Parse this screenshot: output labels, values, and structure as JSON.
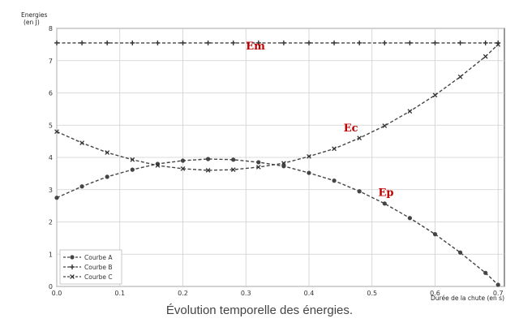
{
  "caption": "Évolution temporelle des énergies.",
  "chart_data": {
    "type": "line",
    "ylabel_line1": "Energies",
    "ylabel_line2": "(en J)",
    "xlabel": "Durée de la chute (en s)",
    "xlim": [
      0,
      0.71
    ],
    "ylim": [
      0,
      8
    ],
    "x_ticks": [
      "0.0",
      "0.1",
      "0.2",
      "0.3",
      "0.4",
      "0.5",
      "0.6",
      "0.7"
    ],
    "y_ticks": [
      "0",
      "1",
      "2",
      "3",
      "4",
      "5",
      "6",
      "7",
      "8"
    ],
    "grid": true,
    "legend_position": "bottom-left",
    "x": [
      0,
      0.04,
      0.08,
      0.12,
      0.16,
      0.2,
      0.24,
      0.28,
      0.32,
      0.36,
      0.4,
      0.44,
      0.48,
      0.52,
      0.56,
      0.6,
      0.64,
      0.68,
      0.7
    ],
    "series": [
      {
        "name": "Courbe A",
        "marker": "circle",
        "values": [
          2.75,
          3.1,
          3.4,
          3.62,
          3.8,
          3.9,
          3.95,
          3.93,
          3.85,
          3.73,
          3.52,
          3.28,
          2.95,
          2.57,
          2.12,
          1.62,
          1.05,
          0.42,
          0.05
        ]
      },
      {
        "name": "Courbe B",
        "marker": "plus",
        "values": [
          7.55,
          7.55,
          7.55,
          7.55,
          7.55,
          7.55,
          7.55,
          7.55,
          7.55,
          7.55,
          7.55,
          7.55,
          7.55,
          7.55,
          7.55,
          7.55,
          7.55,
          7.55,
          7.55
        ]
      },
      {
        "name": "Courbe C",
        "marker": "x",
        "values": [
          4.8,
          4.45,
          4.15,
          3.93,
          3.75,
          3.65,
          3.6,
          3.62,
          3.7,
          3.82,
          4.03,
          4.27,
          4.6,
          4.98,
          5.43,
          5.93,
          6.5,
          7.13,
          7.5
        ]
      }
    ],
    "annotations": [
      {
        "text": "Em",
        "x": 0.3,
        "y": 7.35
      },
      {
        "text": "Ec",
        "x": 0.455,
        "y": 4.8
      },
      {
        "text": "Ep",
        "x": 0.51,
        "y": 2.8
      }
    ]
  }
}
